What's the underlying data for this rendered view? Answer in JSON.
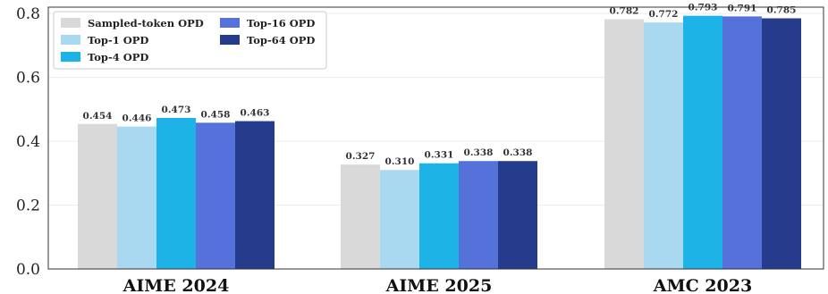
{
  "chart_data": {
    "type": "bar",
    "title": "",
    "xlabel": "",
    "ylabel": "",
    "categories": [
      "AIME 2024",
      "AIME 2025",
      "AMC 2023"
    ],
    "ylim": [
      0,
      0.82
    ],
    "yticks": [
      "0.0",
      "0.2",
      "0.4",
      "0.6",
      "0.8"
    ],
    "grid": true,
    "legend_position": "top-left",
    "series": [
      {
        "name": "Sampled-token OPD",
        "color": "#d9d9d9",
        "values": [
          0.454,
          0.327,
          0.782
        ],
        "labels": [
          "0.454",
          "0.327",
          "0.782"
        ]
      },
      {
        "name": "Top-1 OPD",
        "color": "#a8d9f0",
        "values": [
          0.446,
          0.31,
          0.772
        ],
        "labels": [
          "0.446",
          "0.310",
          "0.772"
        ]
      },
      {
        "name": "Top-4 OPD",
        "color": "#1eb3e6",
        "values": [
          0.473,
          0.331,
          0.793
        ],
        "labels": [
          "0.473",
          "0.331",
          "0.793"
        ]
      },
      {
        "name": "Top-16 OPD",
        "color": "#5472d9",
        "values": [
          0.458,
          0.338,
          0.791
        ],
        "labels": [
          "0.458",
          "0.338",
          "0.791"
        ]
      },
      {
        "name": "Top-64 OPD",
        "color": "#253b8c",
        "values": [
          0.463,
          0.338,
          0.785
        ],
        "labels": [
          "0.463",
          "0.338",
          "0.785"
        ]
      }
    ]
  }
}
